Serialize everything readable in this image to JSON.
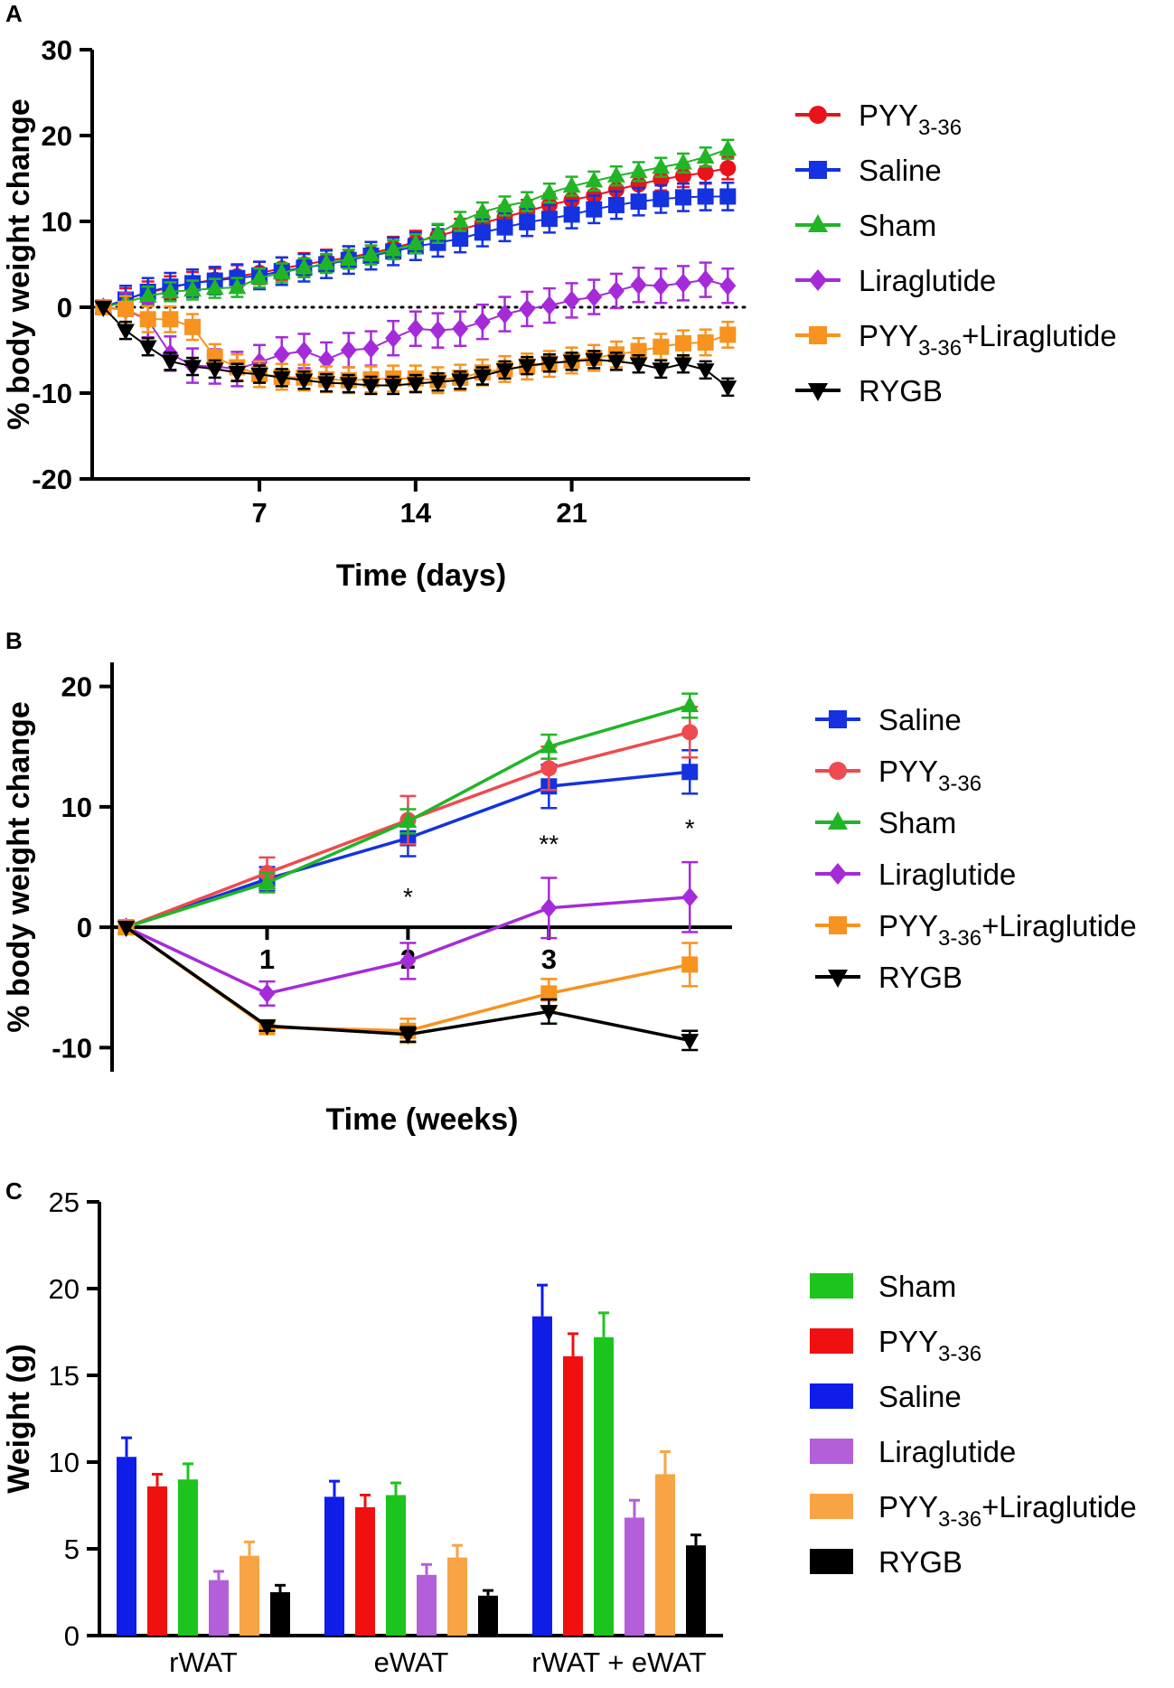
{
  "figure": {
    "panels": [
      "A",
      "B",
      "C"
    ]
  },
  "chart_data": [
    {
      "panel": "A",
      "type": "line",
      "xlabel": "Time (days)",
      "ylabel": "% body weight change",
      "xlim": [
        -0.5,
        29
      ],
      "ylim": [
        -20,
        30
      ],
      "xticks": [
        7,
        14,
        21
      ],
      "yticks": [
        -20,
        -10,
        0,
        10,
        20,
        30
      ],
      "zero_line": "dotted",
      "x": [
        0,
        1,
        2,
        3,
        4,
        5,
        6,
        7,
        8,
        9,
        10,
        11,
        12,
        13,
        14,
        15,
        16,
        17,
        18,
        19,
        20,
        21,
        22,
        23,
        24,
        25,
        26,
        27,
        28
      ],
      "series": [
        {
          "name": "PYY3-36",
          "label_main": "PYY",
          "label_sub": "3-36",
          "label_suffix": "",
          "color": "#e8131b",
          "marker": "circle",
          "values": [
            0,
            0.9,
            1.7,
            2.3,
            2.8,
            3.2,
            3.6,
            4.0,
            4.5,
            5.0,
            5.4,
            5.8,
            6.3,
            6.9,
            7.6,
            8.3,
            9.0,
            9.8,
            10.5,
            11.2,
            11.9,
            12.5,
            13.0,
            13.7,
            14.3,
            14.9,
            15.3,
            15.7,
            16.2
          ],
          "err": 1.3
        },
        {
          "name": "Saline",
          "label_main": "Saline",
          "label_sub": "",
          "label_suffix": "",
          "color": "#1432e0",
          "marker": "square",
          "values": [
            0,
            0.9,
            1.8,
            2.4,
            2.8,
            3.1,
            3.4,
            3.7,
            4.2,
            4.6,
            5.0,
            5.5,
            6.0,
            6.5,
            7.1,
            7.5,
            8.0,
            8.7,
            9.3,
            9.9,
            10.3,
            10.8,
            11.4,
            11.9,
            12.3,
            12.6,
            12.8,
            12.9,
            12.9
          ],
          "err": 1.6
        },
        {
          "name": "Sham",
          "label_main": "Sham",
          "label_sub": "",
          "label_suffix": "",
          "color": "#21b526",
          "marker": "triangle-up",
          "values": [
            0,
            0.6,
            1.3,
            1.8,
            2.0,
            2.2,
            2.3,
            3.4,
            4.0,
            4.6,
            5.1,
            5.6,
            6.1,
            6.7,
            7.4,
            8.6,
            10.0,
            11.1,
            11.8,
            12.3,
            13.3,
            14.1,
            14.7,
            15.3,
            15.8,
            16.3,
            16.8,
            17.5,
            18.4
          ],
          "err": 1.1
        },
        {
          "name": "Liraglutide",
          "label_main": "Liraglutide",
          "label_sub": "",
          "label_suffix": "",
          "color": "#a52bd9",
          "marker": "diamond",
          "values": [
            0,
            -0.3,
            -1.5,
            -5.4,
            -6.8,
            -6.9,
            -7.2,
            -6.4,
            -5.5,
            -5.1,
            -6.1,
            -5.0,
            -4.8,
            -3.6,
            -2.5,
            -2.7,
            -2.5,
            -1.7,
            -0.8,
            -0.2,
            0.2,
            0.8,
            1.2,
            1.9,
            2.6,
            2.5,
            2.8,
            3.2,
            2.5
          ],
          "err": 2.0
        },
        {
          "name": "PYY3-36+Liraglutide",
          "label_main": "PYY",
          "label_sub": "3-36",
          "label_suffix": "+Liraglutide",
          "color": "#f7931e",
          "marker": "square",
          "values": [
            0,
            -0.2,
            -1.4,
            -1.4,
            -2.3,
            -5.8,
            -7.0,
            -7.8,
            -8.1,
            -8.2,
            -8.4,
            -8.5,
            -8.4,
            -8.3,
            -8.3,
            -8.5,
            -8.2,
            -7.6,
            -7.2,
            -6.9,
            -6.6,
            -6.2,
            -5.9,
            -5.5,
            -5.1,
            -4.6,
            -4.2,
            -4.1,
            -3.2
          ],
          "err": 1.5
        },
        {
          "name": "RYGB",
          "label_main": "RYGB",
          "label_sub": "",
          "label_suffix": "",
          "color": "#000000",
          "marker": "triangle-down",
          "values": [
            0,
            -2.7,
            -4.6,
            -6.3,
            -6.9,
            -7.2,
            -7.6,
            -7.8,
            -8.2,
            -8.5,
            -8.8,
            -8.9,
            -9.1,
            -9.1,
            -8.9,
            -8.7,
            -8.5,
            -8.0,
            -7.3,
            -6.8,
            -6.5,
            -6.3,
            -6.1,
            -6.3,
            -6.6,
            -7.2,
            -6.6,
            -7.3,
            -9.3
          ],
          "err": 1.0
        }
      ]
    },
    {
      "panel": "B",
      "type": "line",
      "xlabel": "Time (weeks)",
      "ylabel": "% body weight change",
      "xlim": [
        -0.1,
        4.3
      ],
      "ylim": [
        -12,
        22
      ],
      "xticks": [
        1,
        2,
        3
      ],
      "yticks": [
        -10,
        0,
        10,
        20
      ],
      "x": [
        0,
        1,
        2,
        3,
        4
      ],
      "series": [
        {
          "name": "Saline",
          "label_main": "Saline",
          "label_sub": "",
          "label_suffix": "",
          "color": "#1432e0",
          "marker": "square",
          "values": [
            0,
            4.0,
            7.4,
            11.7,
            12.9
          ],
          "err": [
            0,
            1.0,
            1.5,
            1.8,
            1.8
          ]
        },
        {
          "name": "PYY3-36",
          "label_main": "PYY",
          "label_sub": "3-36",
          "label_suffix": "",
          "color": "#ef4a4e",
          "marker": "circle",
          "values": [
            0,
            4.5,
            8.9,
            13.2,
            16.2
          ],
          "err": [
            0,
            1.3,
            2.0,
            1.8,
            2.1
          ]
        },
        {
          "name": "Sham",
          "label_main": "Sham",
          "label_sub": "",
          "label_suffix": "",
          "color": "#21b526",
          "marker": "triangle-up",
          "values": [
            0,
            3.7,
            8.8,
            15.0,
            18.4
          ],
          "err": [
            0,
            0.8,
            1.0,
            1.0,
            1.0
          ]
        },
        {
          "name": "Liraglutide",
          "label_main": "Liraglutide",
          "label_sub": "",
          "label_suffix": "",
          "color": "#a52bd9",
          "marker": "diamond",
          "values": [
            0,
            -5.5,
            -2.8,
            1.6,
            2.5
          ],
          "err": [
            0,
            1.0,
            1.5,
            2.5,
            2.9
          ]
        },
        {
          "name": "PYY3-36+Liraglutide",
          "label_main": "PYY",
          "label_sub": "3-36",
          "label_suffix": "+Liraglutide",
          "color": "#f7931e",
          "marker": "square",
          "values": [
            0,
            -8.3,
            -8.6,
            -5.5,
            -3.1
          ],
          "err": [
            0,
            0.4,
            1.0,
            1.2,
            1.8
          ]
        },
        {
          "name": "RYGB",
          "label_main": "RYGB",
          "label_sub": "",
          "label_suffix": "",
          "color": "#000000",
          "marker": "triangle-down",
          "values": [
            0,
            -8.2,
            -8.9,
            -7.0,
            -9.4
          ],
          "err": [
            0,
            0.4,
            0.6,
            1.0,
            0.8
          ]
        }
      ],
      "annotations": [
        {
          "text": "*",
          "x": 2,
          "y": 1.8
        },
        {
          "text": "**",
          "x": 3,
          "y": 6.2
        },
        {
          "text": "*",
          "x": 4,
          "y": 7.5
        }
      ]
    },
    {
      "panel": "C",
      "type": "bar",
      "ylabel": "Weight (g)",
      "ylim": [
        0,
        25
      ],
      "yticks": [
        0,
        5,
        10,
        15,
        20,
        25
      ],
      "categories": [
        "rWAT",
        "eWAT",
        "rWAT + eWAT"
      ],
      "bar_order": [
        "Saline",
        "PYY3-36",
        "Sham",
        "Liraglutide",
        "PYY3-36+Liraglutide",
        "RYGB"
      ],
      "series": [
        {
          "name": "Saline",
          "color": "#0f1de8",
          "values": [
            10.3,
            8.0,
            18.4
          ],
          "err": [
            1.1,
            0.9,
            1.8
          ]
        },
        {
          "name": "PYY3-36",
          "color": "#f01010",
          "values": [
            8.6,
            7.4,
            16.1
          ],
          "err": [
            0.7,
            0.7,
            1.3
          ]
        },
        {
          "name": "Sham",
          "color": "#1ec41e",
          "values": [
            9.0,
            8.1,
            17.2
          ],
          "err": [
            0.9,
            0.7,
            1.4
          ]
        },
        {
          "name": "Liraglutide",
          "color": "#b35fd9",
          "values": [
            3.2,
            3.5,
            6.8
          ],
          "err": [
            0.5,
            0.6,
            1.0
          ]
        },
        {
          "name": "PYY3-36+Liraglutide",
          "color": "#f7a445",
          "values": [
            4.6,
            4.5,
            9.3
          ],
          "err": [
            0.8,
            0.7,
            1.3
          ]
        },
        {
          "name": "RYGB",
          "color": "#000000",
          "values": [
            2.5,
            2.3,
            5.2
          ],
          "err": [
            0.4,
            0.3,
            0.6
          ]
        }
      ],
      "legend": [
        {
          "name": "Sham",
          "label_main": "Sham",
          "label_sub": "",
          "label_suffix": "",
          "color": "#1ec41e"
        },
        {
          "name": "PYY3-36",
          "label_main": "PYY",
          "label_sub": "3-36",
          "label_suffix": "",
          "color": "#f01010"
        },
        {
          "name": "Saline",
          "label_main": "Saline",
          "label_sub": "",
          "label_suffix": "",
          "color": "#0f1de8"
        },
        {
          "name": "Liraglutide",
          "label_main": "Liraglutide",
          "label_sub": "",
          "label_suffix": "",
          "color": "#b35fd9"
        },
        {
          "name": "PYY3-36+Liraglutide",
          "label_main": "PYY",
          "label_sub": "3-36",
          "label_suffix": "+Liraglutide",
          "color": "#f7a445"
        },
        {
          "name": "RYGB",
          "label_main": "RYGB",
          "label_sub": "",
          "label_suffix": "",
          "color": "#000000"
        }
      ]
    }
  ]
}
